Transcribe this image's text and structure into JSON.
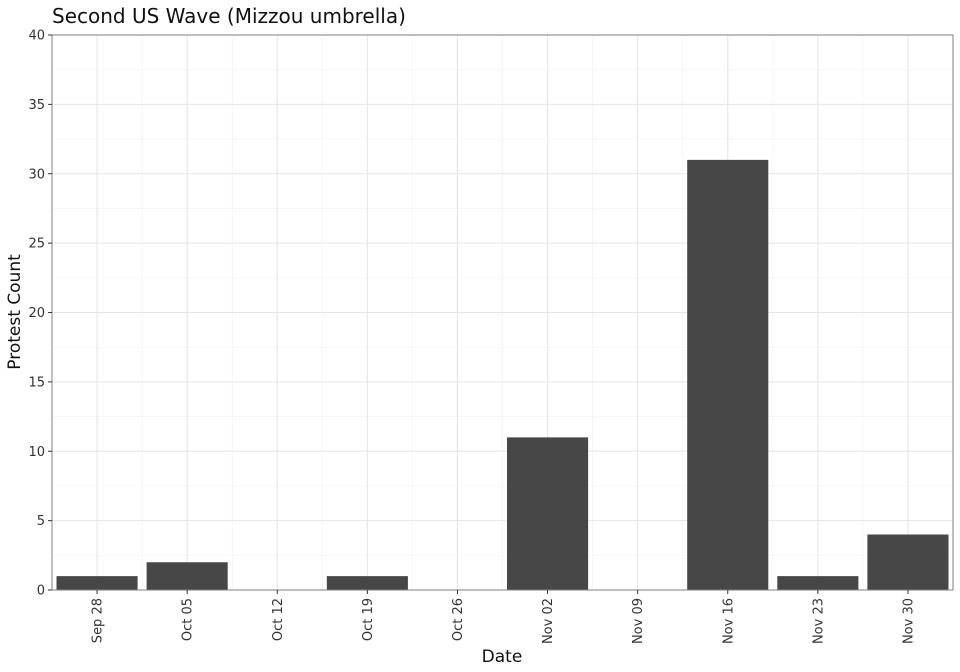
{
  "chart_data": {
    "type": "bar",
    "title": "Second US Wave (Mizzou umbrella)",
    "xlabel": "Date",
    "ylabel": "Protest Count",
    "categories": [
      "Sep 28",
      "Oct 05",
      "Oct 12",
      "Oct 19",
      "Oct 26",
      "Nov 02",
      "Nov 09",
      "Nov 16",
      "Nov 23",
      "Nov 30"
    ],
    "values": [
      1,
      2,
      0,
      1,
      0,
      11,
      0,
      31,
      1,
      4
    ],
    "ylim": [
      0,
      40
    ],
    "yticks": [
      0,
      5,
      10,
      15,
      20,
      25,
      30,
      35,
      40
    ],
    "grid": true,
    "bar_color": "#474747"
  }
}
